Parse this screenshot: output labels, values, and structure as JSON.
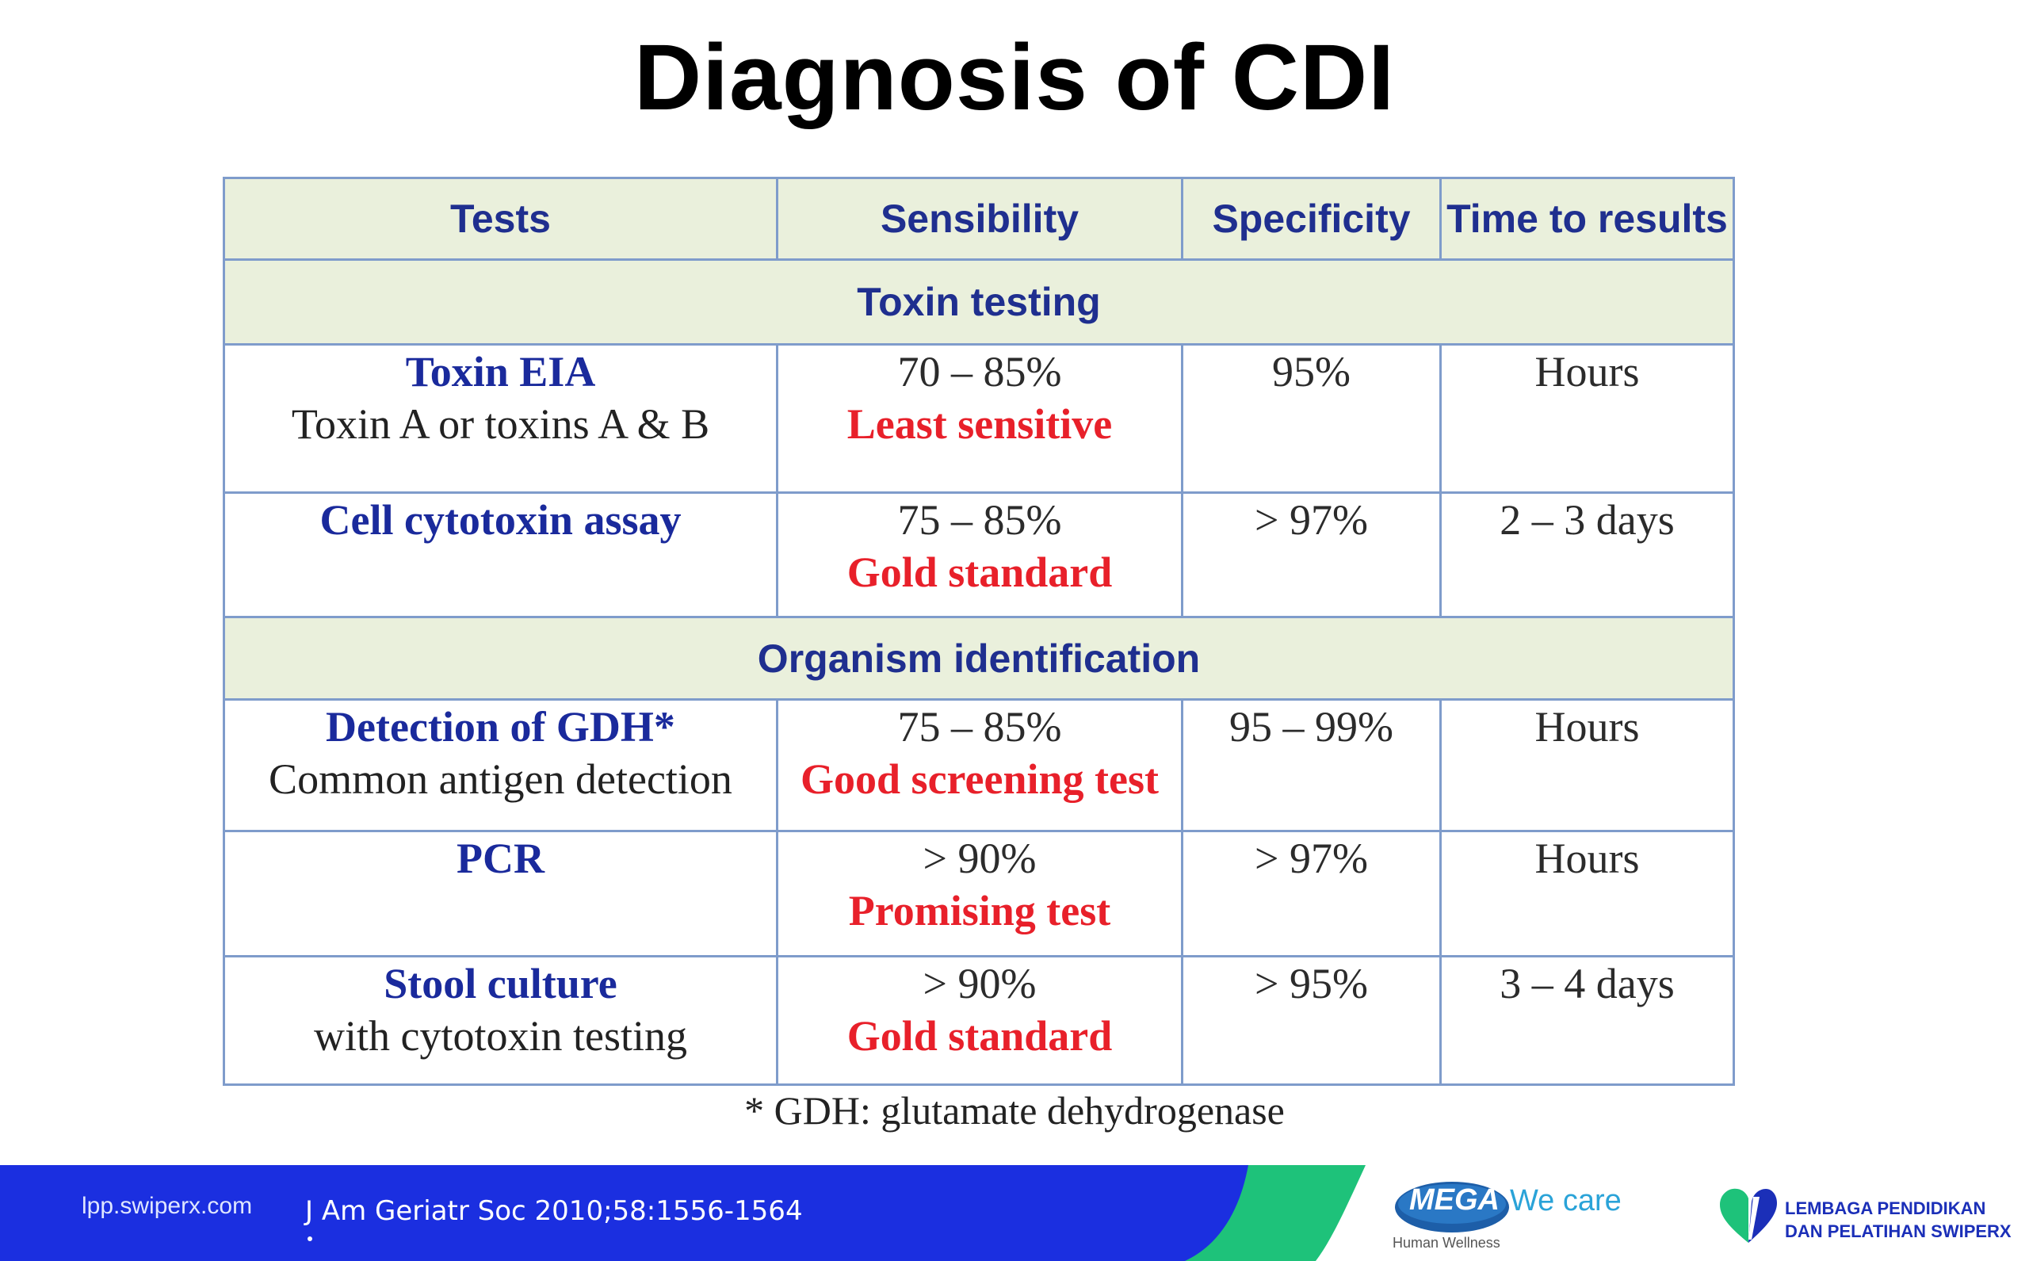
{
  "title": "Diagnosis of CDI",
  "table": {
    "headers": [
      "Tests",
      "Sensibility",
      "Specificity",
      "Time to results"
    ],
    "sections": [
      {
        "label": "Toxin testing",
        "rows": [
          {
            "name": "Toxin EIA",
            "sub": "Toxin A or toxins A & B",
            "sensibility": "70 – 85%",
            "note": "Least sensitive",
            "specificity": "95%",
            "time": "Hours"
          },
          {
            "name": "Cell cytotoxin assay",
            "sub": "",
            "sensibility": "75 – 85%",
            "note": "Gold standard",
            "specificity": "> 97%",
            "time": "2 – 3 days"
          }
        ]
      },
      {
        "label": "Organism identification",
        "rows": [
          {
            "name": "Detection of GDH*",
            "sub": "Common antigen detection",
            "sensibility": "75 – 85%",
            "note": "Good screening test",
            "specificity": "95 – 99%",
            "time": "Hours"
          },
          {
            "name": "PCR",
            "sub": "",
            "sensibility": "> 90%",
            "note": "Promising test",
            "specificity": "> 97%",
            "time": "Hours"
          },
          {
            "name": "Stool culture",
            "sub": "with cytotoxin testing",
            "sensibility": "> 90%",
            "note": "Gold standard",
            "specificity": "> 95%",
            "time": "3 – 4 days"
          }
        ]
      }
    ]
  },
  "footnote": "* GDH: glutamate dehydrogenase",
  "footer": {
    "site": "lpp.swiperx.com",
    "citation": "J Am Geriatr Soc 2010;58:1556-1564",
    "mega_logo": "MEGA",
    "mega_tagline": "We care",
    "mega_sub": "Human Wellness",
    "lpp_line1": "LEMBAGA PENDIDIKAN",
    "lpp_line2": "DAN PELATIHAN SWIPERX"
  },
  "colors": {
    "header_bg": "#eaf0dc",
    "header_text": "#1f2f8f",
    "test_name": "#1a2a9c",
    "note_red": "#e8202a",
    "border": "#7f9ccb",
    "footer_blue": "#1b2fe0",
    "footer_green": "#1ec27a"
  }
}
